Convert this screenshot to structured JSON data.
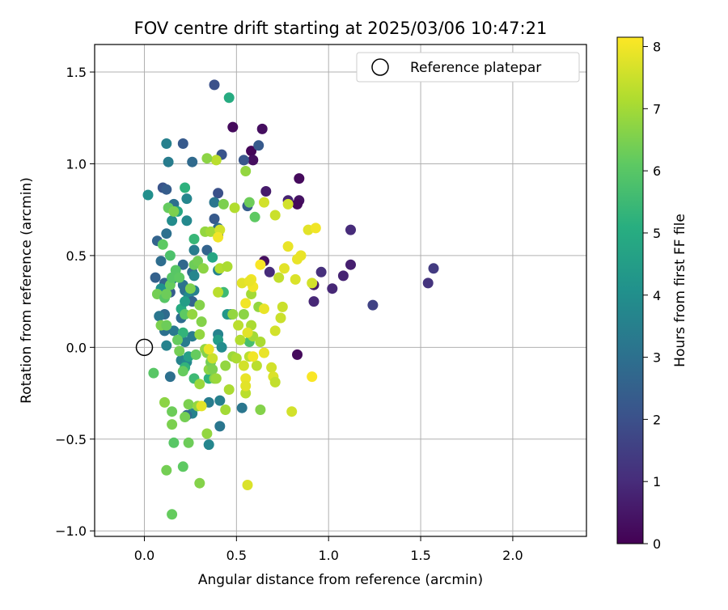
{
  "chart_data": {
    "type": "scatter",
    "title": "FOV centre drift starting at 2025/03/06 10:47:21",
    "xlabel": "Angular distance from reference (arcmin)",
    "ylabel": "Rotation from reference (arcmin)",
    "xlim": [
      -0.27,
      2.4
    ],
    "ylim": [
      -1.03,
      1.65
    ],
    "xticks": [
      0.0,
      0.5,
      1.0,
      1.5,
      2.0
    ],
    "xtick_labels": [
      "0.0",
      "0.5",
      "1.0",
      "1.5",
      "2.0"
    ],
    "yticks": [
      -1.0,
      -0.5,
      0.0,
      0.5,
      1.0,
      1.5
    ],
    "ytick_labels": [
      "−1.0",
      "−0.5",
      "0.0",
      "0.5",
      "1.0",
      "1.5"
    ],
    "grid": true,
    "legend": {
      "position": "top-right",
      "entries": [
        "Reference platepar"
      ]
    },
    "reference_point": {
      "x": 0.0,
      "y": 0.0,
      "label": "Reference platepar"
    },
    "colorbar": {
      "label": "Hours from first FF file",
      "range": [
        0,
        8.15
      ],
      "ticks": [
        0,
        1,
        2,
        3,
        4,
        5,
        6,
        7,
        8
      ],
      "tick_labels": [
        "0",
        "1",
        "2",
        "3",
        "4",
        "5",
        "6",
        "7",
        "8"
      ],
      "colormap": "viridis"
    },
    "points": [
      [
        0.48,
        1.2,
        0.2
      ],
      [
        0.64,
        1.19,
        0.3
      ],
      [
        0.58,
        1.07,
        0.1
      ],
      [
        0.59,
        1.02,
        0.3
      ],
      [
        0.84,
        0.92,
        0.2
      ],
      [
        0.66,
        0.85,
        0.6
      ],
      [
        0.78,
        0.8,
        0.8
      ],
      [
        0.84,
        0.8,
        0.4
      ],
      [
        0.83,
        0.78,
        0.2
      ],
      [
        1.12,
        0.64,
        1.0
      ],
      [
        0.65,
        0.47,
        0.3
      ],
      [
        1.12,
        0.45,
        0.7
      ],
      [
        0.96,
        0.41,
        1.1
      ],
      [
        0.68,
        0.41,
        1.0
      ],
      [
        1.08,
        0.39,
        0.8
      ],
      [
        0.92,
        0.34,
        0.6
      ],
      [
        1.02,
        0.32,
        0.9
      ],
      [
        0.92,
        0.25,
        0.9
      ],
      [
        1.54,
        0.35,
        1.2
      ],
      [
        1.57,
        0.43,
        1.4
      ],
      [
        1.24,
        0.23,
        1.6
      ],
      [
        0.83,
        -0.04,
        0.2
      ],
      [
        0.38,
        1.43,
        2.0
      ],
      [
        0.62,
        1.1,
        2.3
      ],
      [
        0.56,
        0.77,
        2.4
      ],
      [
        0.54,
        1.02,
        2.2
      ],
      [
        0.21,
        1.11,
        2.3
      ],
      [
        0.42,
        1.05,
        2.1
      ],
      [
        0.26,
        1.01,
        2.8
      ],
      [
        0.1,
        0.87,
        2.1
      ],
      [
        0.12,
        0.86,
        2.4
      ],
      [
        0.4,
        0.84,
        2.0
      ],
      [
        0.16,
        0.78,
        3.0
      ],
      [
        0.38,
        0.79,
        3.2
      ],
      [
        0.38,
        0.7,
        2.3
      ],
      [
        0.4,
        0.65,
        2.8
      ],
      [
        0.4,
        0.61,
        2.3
      ],
      [
        0.34,
        0.53,
        2.6
      ],
      [
        0.27,
        0.53,
        3.4
      ],
      [
        0.12,
        0.62,
        3.0
      ],
      [
        0.07,
        0.58,
        2.6
      ],
      [
        0.09,
        0.47,
        2.9
      ],
      [
        0.11,
        0.35,
        2.6
      ],
      [
        0.14,
        0.3,
        2.4
      ],
      [
        0.15,
        0.37,
        3.5
      ],
      [
        0.21,
        0.34,
        3.1
      ],
      [
        0.21,
        0.45,
        2.7
      ],
      [
        0.06,
        0.38,
        2.5
      ],
      [
        0.26,
        0.41,
        2.9
      ],
      [
        0.27,
        0.39,
        3.7
      ],
      [
        0.4,
        0.42,
        3.6
      ],
      [
        0.22,
        0.31,
        3.0
      ],
      [
        0.24,
        0.28,
        3.8
      ],
      [
        0.26,
        0.25,
        2.6
      ],
      [
        0.27,
        0.31,
        3.5
      ],
      [
        0.11,
        0.18,
        2.8
      ],
      [
        0.08,
        0.17,
        3.2
      ],
      [
        0.2,
        0.16,
        2.9
      ],
      [
        0.16,
        0.09,
        3.3
      ],
      [
        0.11,
        0.09,
        3.0
      ],
      [
        0.26,
        0.06,
        3.4
      ],
      [
        0.4,
        0.07,
        3.6
      ],
      [
        0.47,
        0.18,
        3.2
      ],
      [
        0.4,
        0.04,
        4.5
      ],
      [
        0.42,
        0.0,
        3.9
      ],
      [
        0.22,
        0.03,
        3.4
      ],
      [
        0.12,
        0.01,
        3.6
      ],
      [
        0.2,
        -0.07,
        3.6
      ],
      [
        0.23,
        -0.08,
        3.8
      ],
      [
        0.14,
        -0.16,
        3.0
      ],
      [
        0.26,
        -0.36,
        3.6
      ],
      [
        0.35,
        -0.3,
        3.4
      ],
      [
        0.41,
        -0.29,
        3.5
      ],
      [
        0.23,
        -0.37,
        2.8
      ],
      [
        0.53,
        -0.33,
        3.2
      ],
      [
        0.41,
        -0.43,
        3.2
      ],
      [
        0.35,
        -0.53,
        3.7
      ],
      [
        0.02,
        0.83,
        4.0
      ],
      [
        0.12,
        1.11,
        3.5
      ],
      [
        0.13,
        1.01,
        3.4
      ],
      [
        0.46,
        1.36,
        5.0
      ],
      [
        0.23,
        0.81,
        3.7
      ],
      [
        0.23,
        0.69,
        3.8
      ],
      [
        0.15,
        0.69,
        3.9
      ],
      [
        0.18,
        0.74,
        4.8
      ],
      [
        0.22,
        0.87,
        5.2
      ],
      [
        0.27,
        0.59,
        5.4
      ],
      [
        0.45,
        0.18,
        4.3
      ],
      [
        0.09,
        0.32,
        4.1
      ],
      [
        0.2,
        0.21,
        5.0
      ],
      [
        0.22,
        0.25,
        4.5
      ],
      [
        0.37,
        0.49,
        4.8
      ],
      [
        0.43,
        0.3,
        5.5
      ],
      [
        0.57,
        0.03,
        5.7
      ],
      [
        0.24,
        -0.05,
        4.6
      ],
      [
        0.27,
        -0.17,
        5.5
      ],
      [
        0.35,
        -0.17,
        5.2
      ],
      [
        0.22,
        -0.11,
        5.3
      ],
      [
        0.21,
        0.08,
        5.3
      ],
      [
        0.05,
        -0.14,
        6.0
      ],
      [
        0.07,
        0.29,
        6.4
      ],
      [
        0.09,
        0.12,
        6.5
      ],
      [
        0.1,
        0.56,
        6.1
      ],
      [
        0.11,
        0.27,
        6.0
      ],
      [
        0.12,
        0.12,
        6.3
      ],
      [
        0.12,
        0.29,
        6.3
      ],
      [
        0.14,
        0.34,
        6.2
      ],
      [
        0.15,
        0.38,
        6.0
      ],
      [
        0.14,
        0.5,
        5.8
      ],
      [
        0.13,
        0.76,
        6.2
      ],
      [
        0.16,
        0.74,
        6.5
      ],
      [
        0.17,
        0.42,
        6.0
      ],
      [
        0.19,
        0.38,
        6.1
      ],
      [
        0.18,
        0.04,
        6.2
      ],
      [
        0.22,
        0.18,
        6.1
      ],
      [
        0.19,
        -0.02,
        6.4
      ],
      [
        0.21,
        -0.13,
        6.2
      ],
      [
        0.22,
        -0.38,
        6.4
      ],
      [
        0.24,
        -0.52,
        6.3
      ],
      [
        0.21,
        -0.65,
        6.1
      ],
      [
        0.16,
        -0.52,
        6.0
      ],
      [
        0.15,
        -0.35,
        6.3
      ],
      [
        0.15,
        -0.42,
        6.5
      ],
      [
        0.11,
        -0.3,
        6.7
      ],
      [
        0.12,
        -0.67,
        6.4
      ],
      [
        0.15,
        -0.91,
        6.2
      ],
      [
        0.3,
        -0.74,
        6.6
      ],
      [
        0.24,
        -0.31,
        6.5
      ],
      [
        0.26,
        0.18,
        6.8
      ],
      [
        0.25,
        0.32,
        6.5
      ],
      [
        0.27,
        0.45,
        6.3
      ],
      [
        0.29,
        0.47,
        6.4
      ],
      [
        0.32,
        0.43,
        6.7
      ],
      [
        0.3,
        0.23,
        6.6
      ],
      [
        0.31,
        0.14,
        6.6
      ],
      [
        0.3,
        0.07,
        6.8
      ],
      [
        0.33,
        -0.01,
        6.8
      ],
      [
        0.34,
        -0.03,
        6.6
      ],
      [
        0.28,
        -0.04,
        6.2
      ],
      [
        0.3,
        -0.2,
        6.9
      ],
      [
        0.29,
        -0.32,
        6.8
      ],
      [
        0.34,
        -0.47,
        6.8
      ],
      [
        0.35,
        -0.12,
        6.7
      ],
      [
        0.36,
        -0.08,
        6.4
      ],
      [
        0.37,
        -0.12,
        6.5
      ],
      [
        0.38,
        -0.17,
        6.6
      ],
      [
        0.39,
        -0.17,
        6.9
      ],
      [
        0.44,
        -0.1,
        6.8
      ],
      [
        0.44,
        -0.34,
        7.0
      ],
      [
        0.46,
        -0.23,
        7.1
      ],
      [
        0.48,
        -0.05,
        6.9
      ],
      [
        0.5,
        -0.06,
        7.1
      ],
      [
        0.52,
        0.04,
        7.2
      ],
      [
        0.54,
        0.18,
        6.7
      ],
      [
        0.55,
        -0.25,
        7.3
      ],
      [
        0.57,
        -0.05,
        7.3
      ],
      [
        0.58,
        0.12,
        7.1
      ],
      [
        0.59,
        0.06,
        7.0
      ],
      [
        0.61,
        -0.1,
        7.3
      ],
      [
        0.63,
        0.03,
        7.1
      ],
      [
        0.63,
        -0.34,
        6.6
      ],
      [
        0.33,
        0.63,
        6.8
      ],
      [
        0.36,
        0.63,
        7.0
      ],
      [
        0.39,
        1.02,
        7.3
      ],
      [
        0.34,
        1.03,
        6.7
      ],
      [
        0.43,
        0.78,
        6.5
      ],
      [
        0.49,
        0.76,
        7.2
      ],
      [
        0.4,
        0.3,
        7.3
      ],
      [
        0.41,
        0.43,
        7.2
      ],
      [
        0.45,
        0.44,
        7.1
      ],
      [
        0.48,
        0.18,
        6.8
      ],
      [
        0.51,
        0.12,
        7.3
      ],
      [
        0.55,
        0.96,
        6.8
      ],
      [
        0.57,
        0.79,
        6.3
      ],
      [
        0.58,
        0.29,
        7.0
      ],
      [
        0.6,
        0.71,
        6.1
      ],
      [
        0.62,
        0.22,
        6.8
      ],
      [
        0.41,
        0.64,
        7.6
      ],
      [
        0.4,
        0.6,
        8.0
      ],
      [
        0.65,
        0.79,
        7.6
      ],
      [
        0.71,
        0.72,
        7.5
      ],
      [
        0.78,
        0.78,
        7.6
      ],
      [
        0.78,
        0.55,
        7.9
      ],
      [
        0.76,
        0.43,
        7.8
      ],
      [
        0.82,
        0.37,
        7.7
      ],
      [
        0.83,
        0.48,
        7.9
      ],
      [
        0.85,
        0.5,
        7.9
      ],
      [
        0.89,
        0.64,
        7.8
      ],
      [
        0.91,
        0.35,
        7.6
      ],
      [
        0.93,
        0.65,
        8.0
      ],
      [
        0.73,
        0.38,
        7.4
      ],
      [
        0.75,
        0.22,
        7.5
      ],
      [
        0.71,
        0.09,
        7.6
      ],
      [
        0.74,
        0.16,
        7.5
      ],
      [
        0.63,
        0.45,
        8.1
      ],
      [
        0.58,
        0.37,
        8.0
      ],
      [
        0.59,
        0.33,
        8.0
      ],
      [
        0.53,
        0.35,
        7.8
      ],
      [
        0.55,
        0.24,
        8.0
      ],
      [
        0.56,
        0.08,
        7.8
      ],
      [
        0.54,
        -0.1,
        7.6
      ],
      [
        0.57,
        0.36,
        7.9
      ],
      [
        0.65,
        0.21,
        7.9
      ],
      [
        0.65,
        -0.03,
        7.9
      ],
      [
        0.59,
        -0.05,
        8.0
      ],
      [
        0.69,
        -0.11,
        7.6
      ],
      [
        0.7,
        -0.16,
        7.7
      ],
      [
        0.71,
        -0.19,
        7.4
      ],
      [
        0.55,
        -0.17,
        7.9
      ],
      [
        0.55,
        -0.21,
        7.8
      ],
      [
        0.91,
        -0.16,
        8.1
      ],
      [
        0.8,
        -0.35,
        7.6
      ],
      [
        0.56,
        -0.75,
        7.7
      ],
      [
        0.37,
        -0.06,
        7.5
      ],
      [
        0.35,
        -0.01,
        7.9
      ],
      [
        0.31,
        -0.32,
        7.8
      ]
    ]
  }
}
